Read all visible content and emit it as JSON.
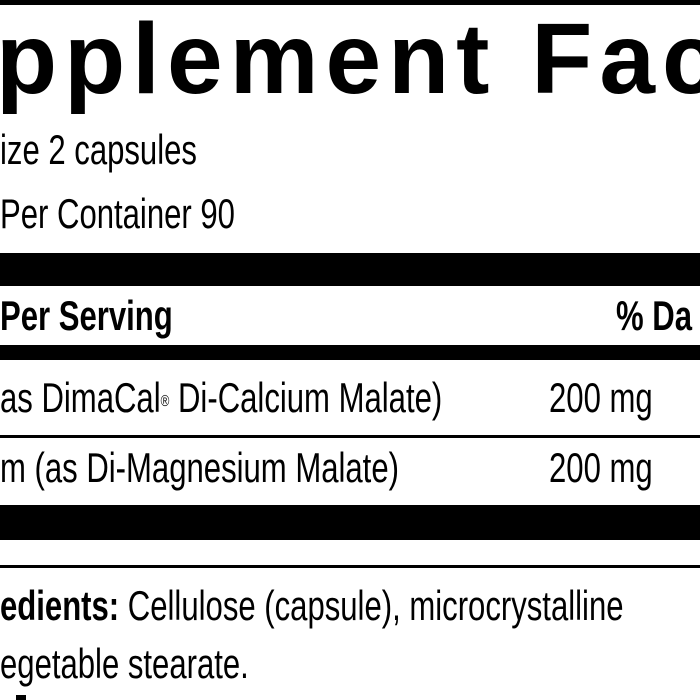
{
  "label": {
    "title": "pplement Fac",
    "serving_size": "ize 2 capsules",
    "servings_per_container": "Per Container 90",
    "header": {
      "amount": "Per Serving",
      "daily_value": "% Da"
    },
    "rows": [
      {
        "name": "as DimaCal",
        "reg": "®",
        "name_rest": " Di-Calcium Malate)",
        "amount": "200 mg"
      },
      {
        "name": "m (as Di-Magnesium Malate)",
        "amount": "200 mg"
      }
    ],
    "ingredients_label": "edients:",
    "ingredients_text": " Cellulose (capsule), microcrystalline",
    "ingredients_line2": "egetable stearate."
  }
}
